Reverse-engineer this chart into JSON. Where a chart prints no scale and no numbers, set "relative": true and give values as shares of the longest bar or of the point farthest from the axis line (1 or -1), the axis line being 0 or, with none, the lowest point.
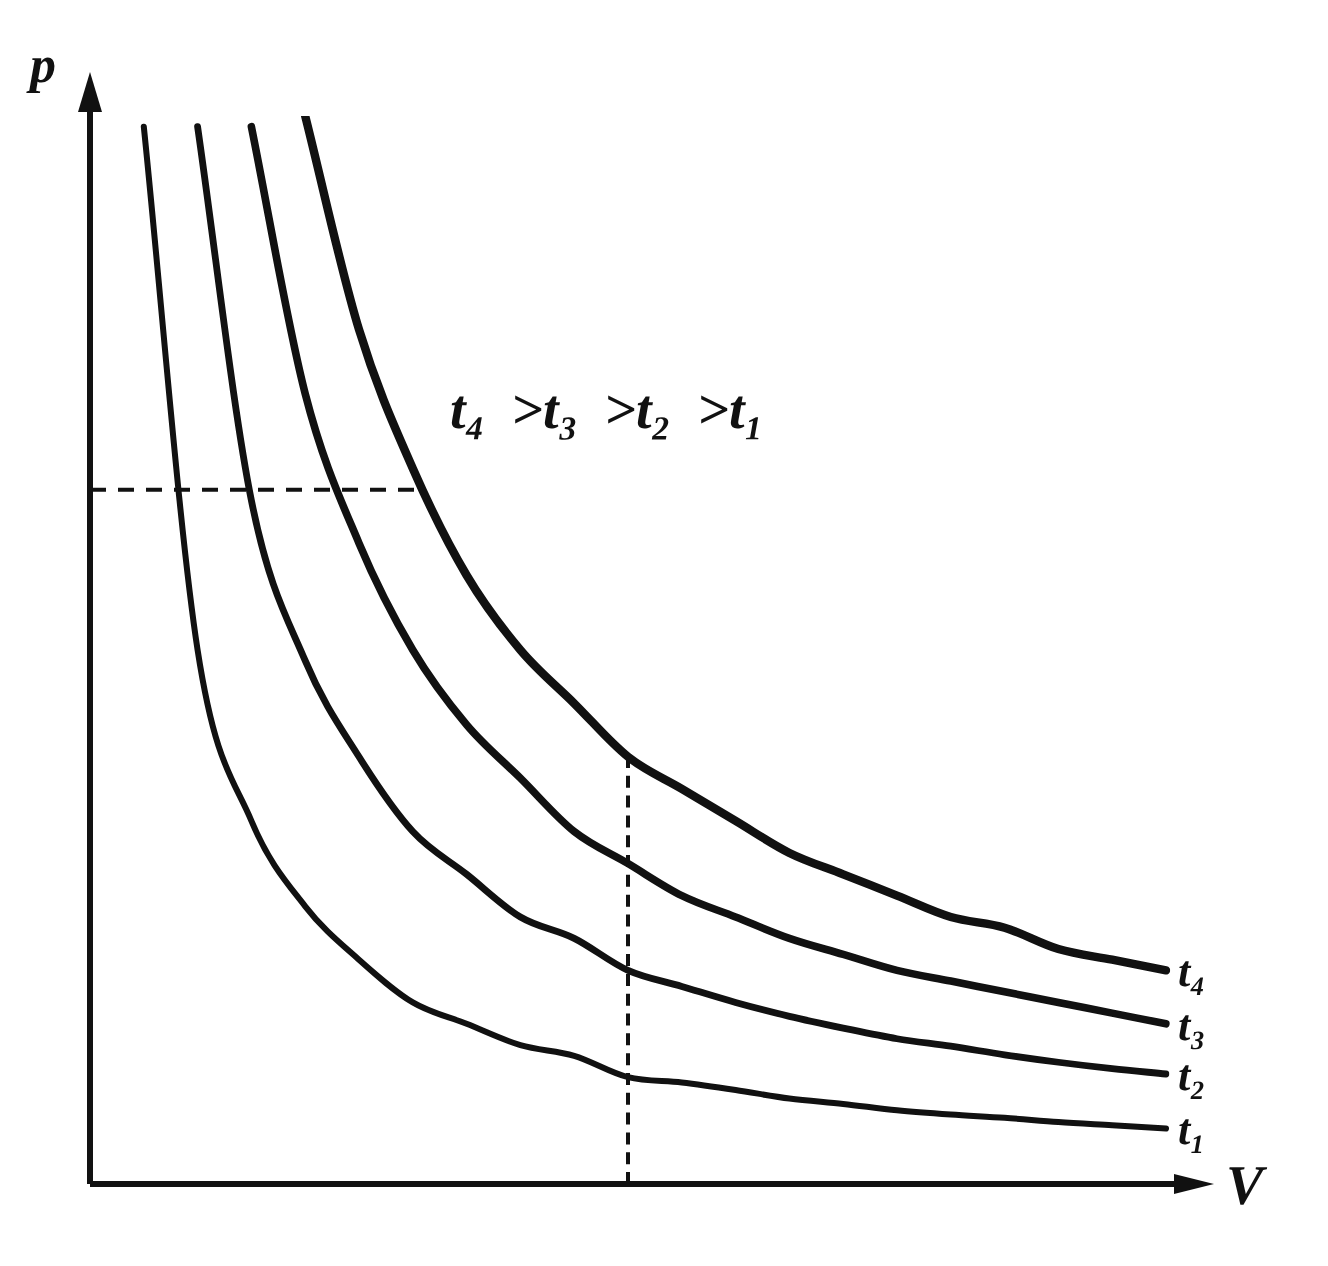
{
  "chart_data": {
    "type": "line",
    "relative": true,
    "xlabel": "V",
    "ylabel": "p",
    "annotations": [
      "t₄ >t₃ >t₂ >t₁"
    ],
    "categories": [
      null,
      null,
      null,
      null,
      null,
      null,
      null,
      null,
      null,
      null,
      null,
      null,
      null,
      null,
      null,
      null,
      null,
      null,
      null,
      null,
      null
    ],
    "series": [
      {
        "name": "t₁",
        "color": "#111111",
        "values": [
          null,
          0.99,
          0.5,
          0.34,
          0.26,
          0.21,
          0.17,
          0.15,
          0.13,
          0.12,
          0.1,
          0.095,
          0.088,
          0.08,
          0.075,
          0.069,
          0.065,
          0.062,
          0.058,
          0.055,
          0.052
        ]
      },
      {
        "name": "t₂",
        "color": "#111111",
        "values": [
          null,
          null,
          0.99,
          0.64,
          0.49,
          0.4,
          0.33,
          0.29,
          0.25,
          0.23,
          0.2,
          0.185,
          0.17,
          0.157,
          0.146,
          0.136,
          0.129,
          0.121,
          0.114,
          0.108,
          0.103
        ]
      },
      {
        "name": "t₃",
        "color": "#111111",
        "values": [
          null,
          null,
          null,
          0.99,
          0.74,
          0.6,
          0.5,
          0.43,
          0.38,
          0.33,
          0.3,
          0.27,
          0.25,
          0.23,
          0.215,
          0.2,
          0.19,
          0.18,
          0.17,
          0.16,
          0.15
        ]
      },
      {
        "name": "t₄",
        "color": "#111111",
        "values": [
          null,
          null,
          null,
          null,
          1,
          0.8,
          0.67,
          0.57,
          0.5,
          0.45,
          0.4,
          0.37,
          0.34,
          0.31,
          0.29,
          0.27,
          0.25,
          0.24,
          0.22,
          0.21,
          0.2
        ]
      }
    ],
    "ref_lines": [
      {
        "axis": "y",
        "value": 0.65,
        "line_style": "dashed"
      }
    ],
    "legend": false,
    "grid": false,
    "tick_labels": false,
    "marker": "none",
    "line_style": "solid"
  }
}
